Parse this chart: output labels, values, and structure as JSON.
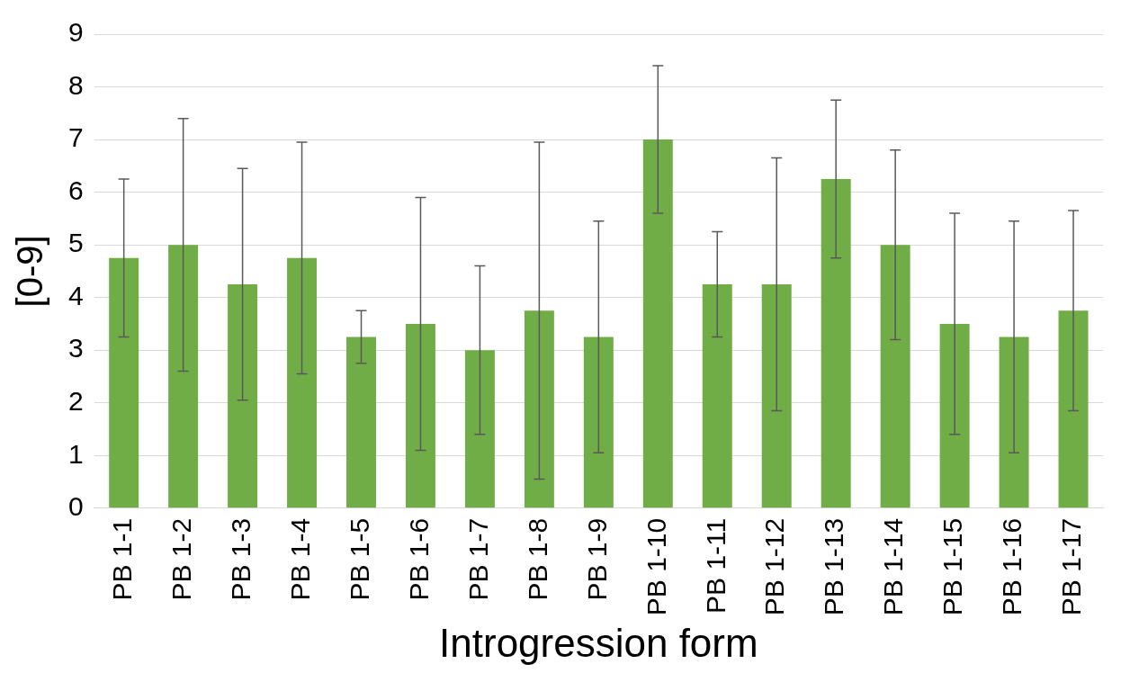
{
  "chart_data": {
    "type": "bar",
    "xlabel": "Introgression form",
    "ylabel": "[0-9]",
    "categories": [
      "PB 1-1",
      "PB 1-2",
      "PB 1-3",
      "PB 1-4",
      "PB 1-5",
      "PB 1-6",
      "PB 1-7",
      "PB 1-8",
      "PB 1-9",
      "PB 1-10",
      "PB 1-11",
      "PB 1-12",
      "PB 1-13",
      "PB 1-14",
      "PB 1-15",
      "PB 1-16",
      "PB 1-17"
    ],
    "values": [
      4.75,
      5.0,
      4.25,
      4.75,
      3.25,
      3.5,
      3.0,
      3.75,
      3.25,
      7.0,
      4.25,
      4.25,
      6.25,
      5.0,
      3.5,
      3.25,
      3.75
    ],
    "errors": [
      1.5,
      2.4,
      2.2,
      2.2,
      0.5,
      2.4,
      1.6,
      3.2,
      2.2,
      1.4,
      1.0,
      2.4,
      1.5,
      1.8,
      2.1,
      2.2,
      1.9
    ],
    "color": "#70ad47",
    "ylim": [
      0,
      9
    ],
    "yticks": [
      0,
      1,
      2,
      3,
      4,
      5,
      6,
      7,
      8,
      9
    ],
    "grid": "y",
    "legend": false
  }
}
